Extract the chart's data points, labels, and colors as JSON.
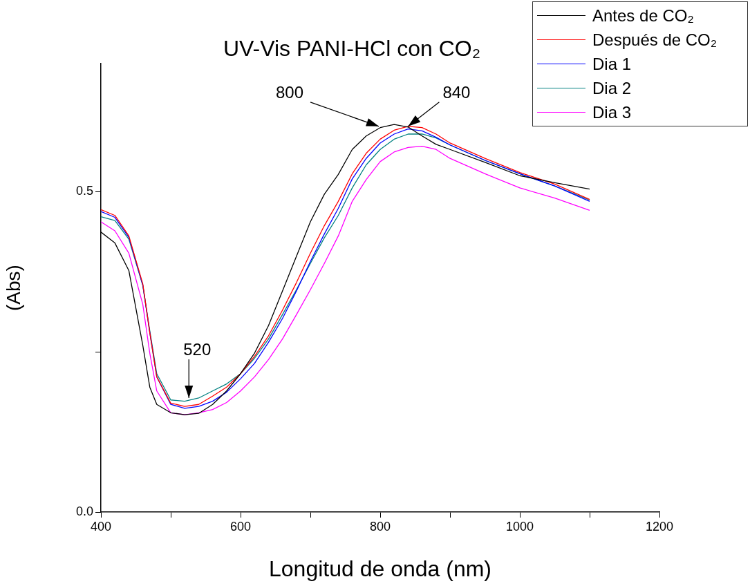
{
  "chart_data": {
    "type": "line",
    "title": "UV-Vis PANI-HCl con CO₂",
    "xlabel": "Longitud de onda (nm)",
    "ylabel": "(Abs)",
    "x": [
      400,
      420,
      440,
      460,
      470,
      480,
      500,
      520,
      540,
      560,
      580,
      600,
      620,
      640,
      660,
      680,
      700,
      720,
      740,
      760,
      780,
      800,
      820,
      840,
      860,
      880,
      900,
      950,
      1000,
      1050,
      1100
    ],
    "series": [
      {
        "name": "Antes de CO₂",
        "color": "#000000",
        "values": [
          0.437,
          0.42,
          0.377,
          0.26,
          0.195,
          0.168,
          0.155,
          0.152,
          0.154,
          0.168,
          0.189,
          0.216,
          0.248,
          0.291,
          0.345,
          0.399,
          0.453,
          0.496,
          0.527,
          0.566,
          0.587,
          0.6,
          0.605,
          0.601,
          0.587,
          0.574,
          0.566,
          0.546,
          0.525,
          0.514,
          0.504
        ]
      },
      {
        "name": "Después de CO₂",
        "color": "#ff0000",
        "values": [
          0.472,
          0.463,
          0.431,
          0.356,
          0.28,
          0.211,
          0.17,
          0.165,
          0.168,
          0.181,
          0.195,
          0.216,
          0.243,
          0.275,
          0.315,
          0.358,
          0.404,
          0.447,
          0.485,
          0.528,
          0.56,
          0.582,
          0.596,
          0.602,
          0.6,
          0.59,
          0.576,
          0.552,
          0.53,
          0.512,
          0.488
        ]
      },
      {
        "name": "Dia 1",
        "color": "#0000ff",
        "values": [
          0.469,
          0.46,
          0.429,
          0.354,
          0.28,
          0.211,
          0.168,
          0.162,
          0.165,
          0.173,
          0.187,
          0.208,
          0.232,
          0.265,
          0.302,
          0.345,
          0.391,
          0.434,
          0.474,
          0.52,
          0.552,
          0.576,
          0.59,
          0.598,
          0.595,
          0.585,
          0.573,
          0.549,
          0.528,
          0.509,
          0.485
        ]
      },
      {
        "name": "Dia 2",
        "color": "#008080",
        "values": [
          0.461,
          0.455,
          0.426,
          0.354,
          0.283,
          0.216,
          0.175,
          0.173,
          0.178,
          0.189,
          0.2,
          0.216,
          0.24,
          0.27,
          0.308,
          0.347,
          0.388,
          0.428,
          0.463,
          0.506,
          0.542,
          0.566,
          0.582,
          0.59,
          0.59,
          0.584,
          0.573,
          0.549,
          0.528,
          0.509,
          0.487
        ]
      },
      {
        "name": "Dia 3",
        "color": "#ff00ff",
        "values": [
          0.453,
          0.439,
          0.404,
          0.324,
          0.248,
          0.189,
          0.155,
          0.152,
          0.155,
          0.16,
          0.171,
          0.189,
          0.211,
          0.238,
          0.27,
          0.308,
          0.347,
          0.388,
          0.431,
          0.485,
          0.519,
          0.547,
          0.562,
          0.569,
          0.571,
          0.566,
          0.552,
          0.528,
          0.506,
          0.49,
          0.471
        ]
      }
    ],
    "xlim": [
      400,
      1200
    ],
    "xticks": [
      400,
      {
        "value": 500,
        "label": null
      },
      600,
      {
        "value": 700,
        "label": null
      },
      800,
      {
        "value": 900,
        "label": null
      },
      1000,
      {
        "value": 1100,
        "label": null
      },
      1200
    ],
    "ylim": [
      0,
      0.7
    ],
    "yticks": [
      {
        "value": 0,
        "label": "0.0"
      },
      {
        "value": 0.25,
        "label": null
      },
      0.5
    ],
    "legend": "top right",
    "annotations": [
      {
        "text": "800",
        "x": 798,
        "y": 0.602
      },
      {
        "text": "840",
        "x": 840,
        "y": 0.602
      },
      {
        "text": "520",
        "x": 526,
        "y": 0.178
      }
    ]
  }
}
